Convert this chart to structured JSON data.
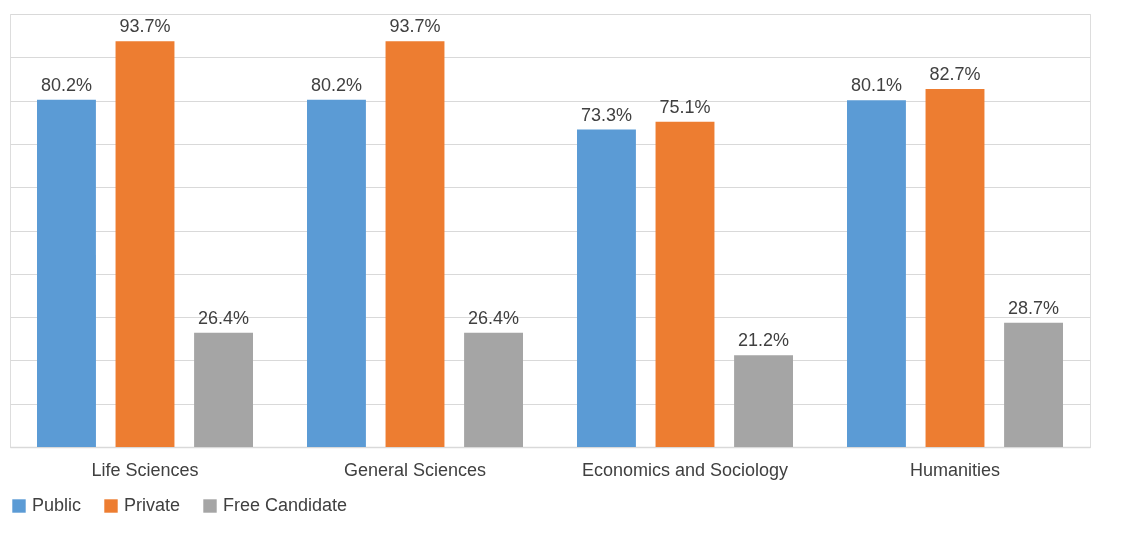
{
  "chart_data": {
    "type": "bar",
    "categories": [
      "Life Sciences",
      "General Sciences",
      "Economics and Sociology",
      "Humanities"
    ],
    "series": [
      {
        "name": "Public",
        "color": "#5b9bd5",
        "values": [
          80.2,
          80.2,
          73.3,
          80.1
        ],
        "value_labels": [
          "80.2%",
          "80.2%",
          "73.3%",
          "80.1%"
        ]
      },
      {
        "name": "Private",
        "color": "#ed7d31",
        "values": [
          93.7,
          93.7,
          75.1,
          82.7
        ],
        "value_labels": [
          "93.7%",
          "93.7%",
          "75.1%",
          "82.7%"
        ]
      },
      {
        "name": "Free Candidate",
        "color": "#a5a5a5",
        "values": [
          26.4,
          26.4,
          21.2,
          28.7
        ],
        "value_labels": [
          "26.4%",
          "26.4%",
          "21.2%",
          "28.7%"
        ]
      }
    ],
    "ylim": [
      0,
      100
    ],
    "yticks": [
      {
        "value": 0,
        "label": null
      },
      {
        "value": 10,
        "label": null
      },
      {
        "value": 20,
        "label": null
      },
      {
        "value": 30,
        "label": null
      },
      {
        "value": 40,
        "label": null
      },
      {
        "value": 50,
        "label": null
      },
      {
        "value": 60,
        "label": null
      },
      {
        "value": 70,
        "label": null
      },
      {
        "value": 80,
        "label": null
      },
      {
        "value": 90,
        "label": null
      },
      {
        "value": 100,
        "label": null
      }
    ],
    "grid": "y",
    "legend": "bottom",
    "tick_labels": "x"
  }
}
